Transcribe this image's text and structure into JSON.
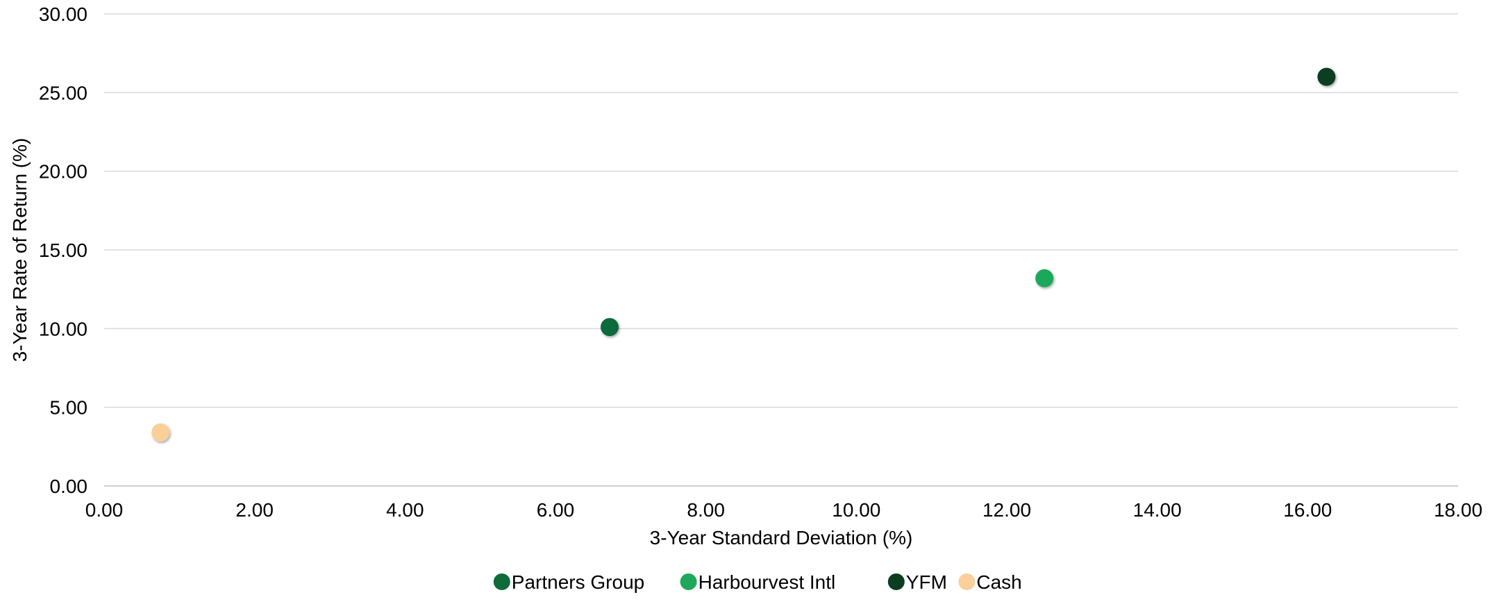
{
  "chart_data": {
    "type": "scatter",
    "xlabel": "3-Year Standard Deviation (%)",
    "ylabel": "3-Year Rate of Return (%)",
    "xlim": [
      0,
      18
    ],
    "ylim": [
      0,
      30
    ],
    "x_ticks": [
      "0.00",
      "2.00",
      "4.00",
      "6.00",
      "8.00",
      "10.00",
      "12.00",
      "14.00",
      "16.00",
      "18.00"
    ],
    "y_ticks": [
      "0.00",
      "5.00",
      "10.00",
      "15.00",
      "20.00",
      "25.00",
      "30.00"
    ],
    "grid": "horizontal",
    "legend_position": "bottom",
    "series": [
      {
        "name": "Partners Group",
        "color": "#0f6b3a",
        "points": [
          {
            "x": 6.72,
            "y": 10.1
          }
        ]
      },
      {
        "name": "Harbourvest Intl",
        "color": "#1fa85a",
        "points": [
          {
            "x": 12.5,
            "y": 13.2
          }
        ]
      },
      {
        "name": "YFM",
        "color": "#0b3d20",
        "points": [
          {
            "x": 16.25,
            "y": 26.0
          }
        ]
      },
      {
        "name": "Cash",
        "color": "#fbcf99",
        "points": [
          {
            "x": 0.75,
            "y": 3.4
          }
        ]
      }
    ]
  }
}
